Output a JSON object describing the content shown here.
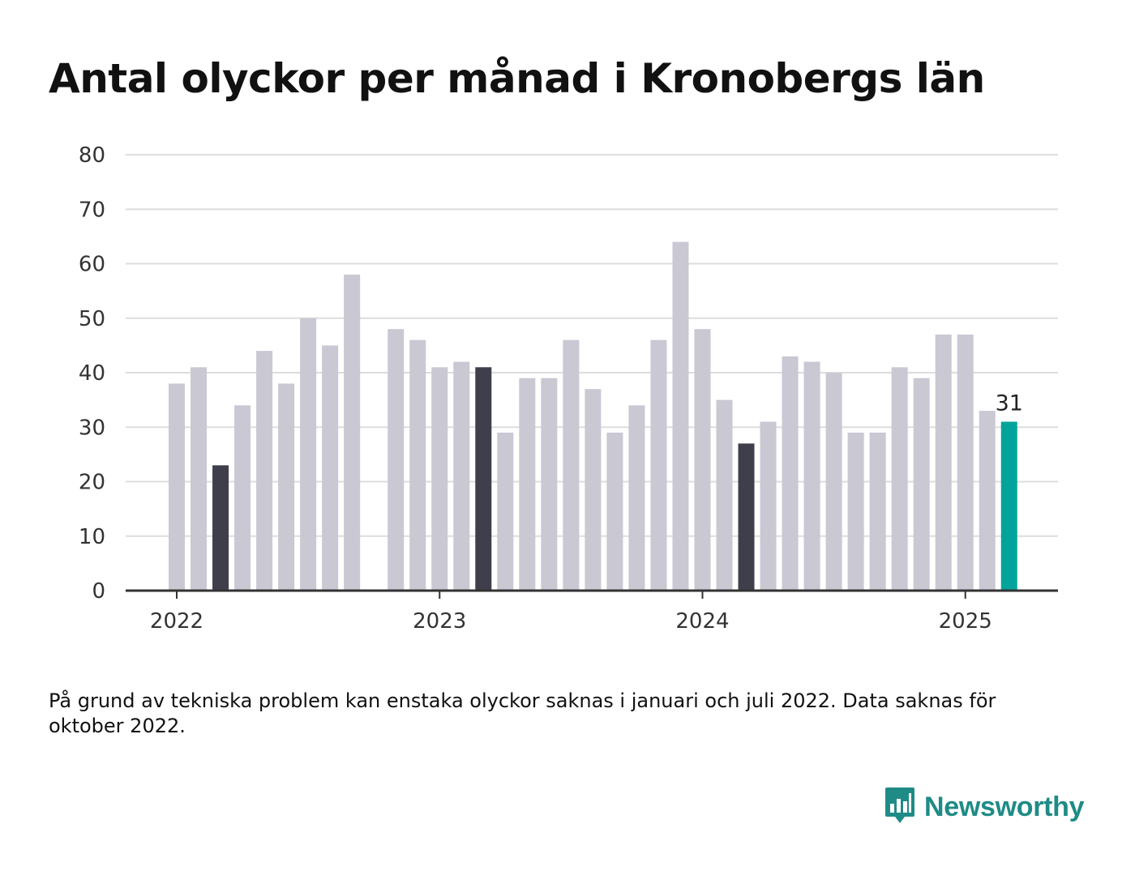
{
  "title": "Antal olyckor per månad i Kronobergs län",
  "note": "På grund av tekniska problem kan enstaka olyckor saknas i januari och juli 2022. Data saknas för oktober 2022.",
  "brand": {
    "name": "Newsworthy",
    "icon": "bar-chart-speech-bubble-icon",
    "color": "#1f8b86"
  },
  "colors": {
    "bar": "#c9c8d3",
    "highlight_dark": "#3f3e4b",
    "highlight_latest": "#00a49a",
    "grid": "#dddddd",
    "baseline": "#333333"
  },
  "chart_data": {
    "type": "bar",
    "x": [
      "2022-01",
      "2022-02",
      "2022-03",
      "2022-04",
      "2022-05",
      "2022-06",
      "2022-07",
      "2022-08",
      "2022-09",
      "2022-10",
      "2022-11",
      "2022-12",
      "2023-01",
      "2023-02",
      "2023-03",
      "2023-04",
      "2023-05",
      "2023-06",
      "2023-07",
      "2023-08",
      "2023-09",
      "2023-10",
      "2023-11",
      "2023-12",
      "2024-01",
      "2024-02",
      "2024-03",
      "2024-04",
      "2024-05",
      "2024-06",
      "2024-07",
      "2024-08",
      "2024-09",
      "2024-10",
      "2024-11",
      "2024-12",
      "2025-01",
      "2025-02",
      "2025-03"
    ],
    "values": [
      38,
      41,
      23,
      34,
      44,
      38,
      50,
      45,
      58,
      null,
      48,
      46,
      41,
      42,
      41,
      29,
      39,
      39,
      46,
      37,
      29,
      34,
      46,
      64,
      48,
      35,
      27,
      31,
      43,
      42,
      40,
      29,
      29,
      41,
      39,
      47,
      47,
      33,
      31
    ],
    "highlighted_dark": [
      "2022-03",
      "2023-03",
      "2024-03"
    ],
    "highlighted_latest": "2025-03",
    "value_label": {
      "x": "2025-03",
      "text": "31"
    },
    "x_ticks": [
      {
        "x": "2022-01",
        "label": "2022"
      },
      {
        "x": "2023-01",
        "label": "2023"
      },
      {
        "x": "2024-01",
        "label": "2024"
      },
      {
        "x": "2025-01",
        "label": "2025"
      }
    ],
    "y_ticks": [
      0,
      10,
      20,
      30,
      40,
      50,
      60,
      70,
      80
    ],
    "ylim": [
      0,
      80
    ],
    "grid": true,
    "xlabel": "",
    "ylabel": ""
  }
}
